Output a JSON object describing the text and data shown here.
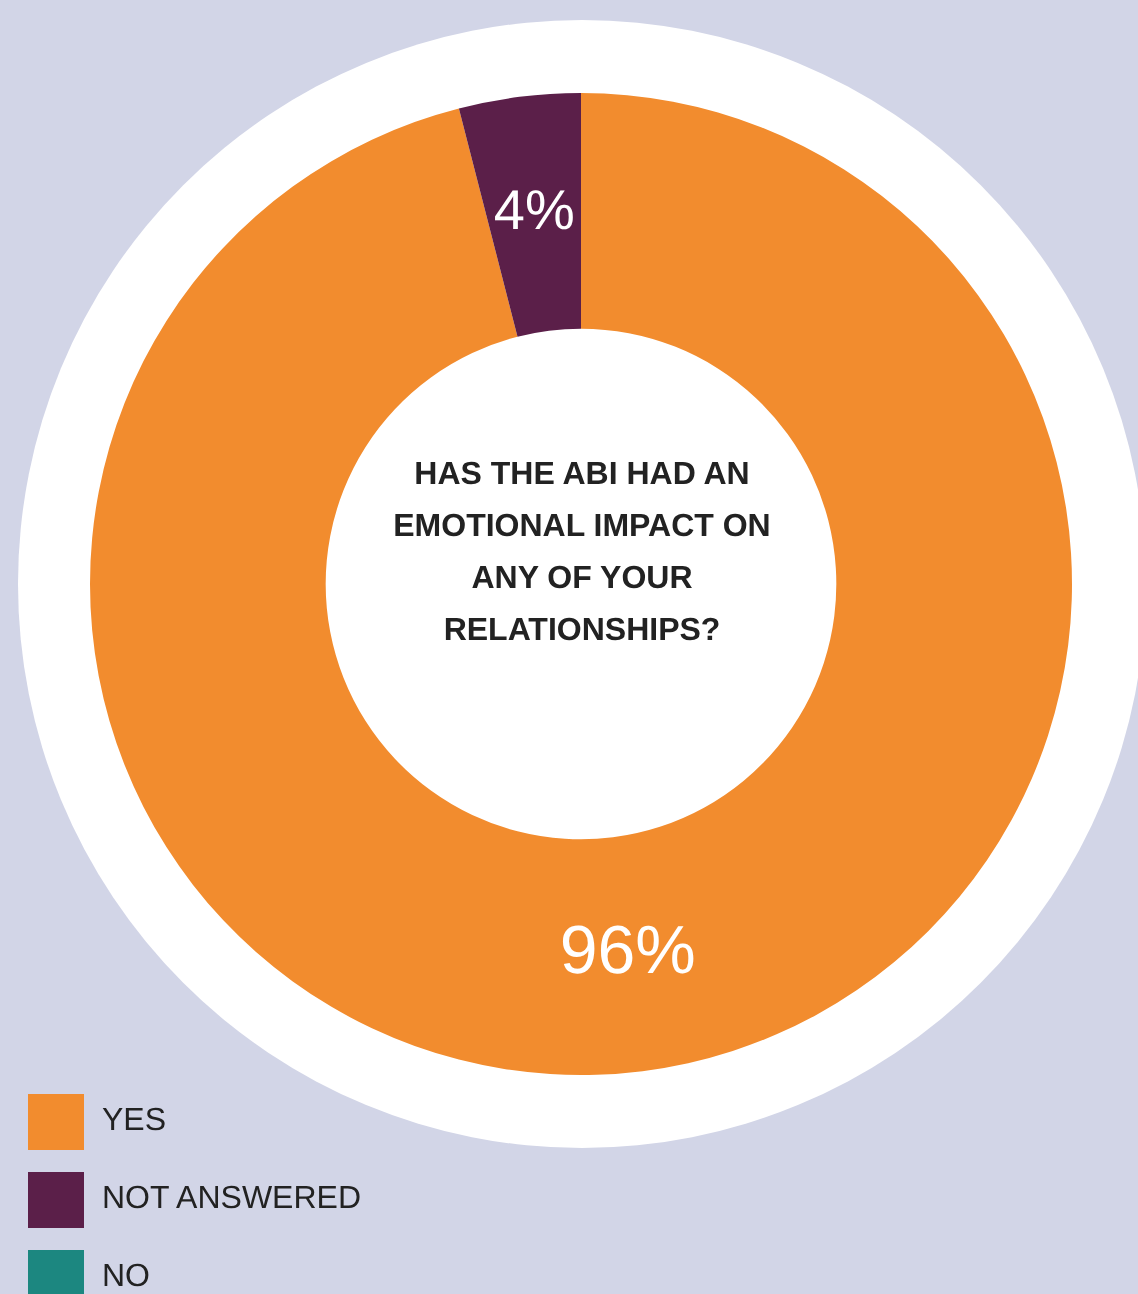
{
  "chart_data": {
    "type": "donut",
    "title": "HAS THE ABI HAD AN EMOTIONAL IMPACT ON ANY OF YOUR RELATIONSHIPS?",
    "categories": [
      "YES",
      "NOT ANSWERED",
      "NO"
    ],
    "values": [
      96,
      4,
      0
    ],
    "colors": [
      "#f28c2e",
      "#5b1f49",
      "#1c8780"
    ],
    "value_labels": [
      "96%",
      "4%",
      null
    ],
    "legend": "bottom left"
  }
}
